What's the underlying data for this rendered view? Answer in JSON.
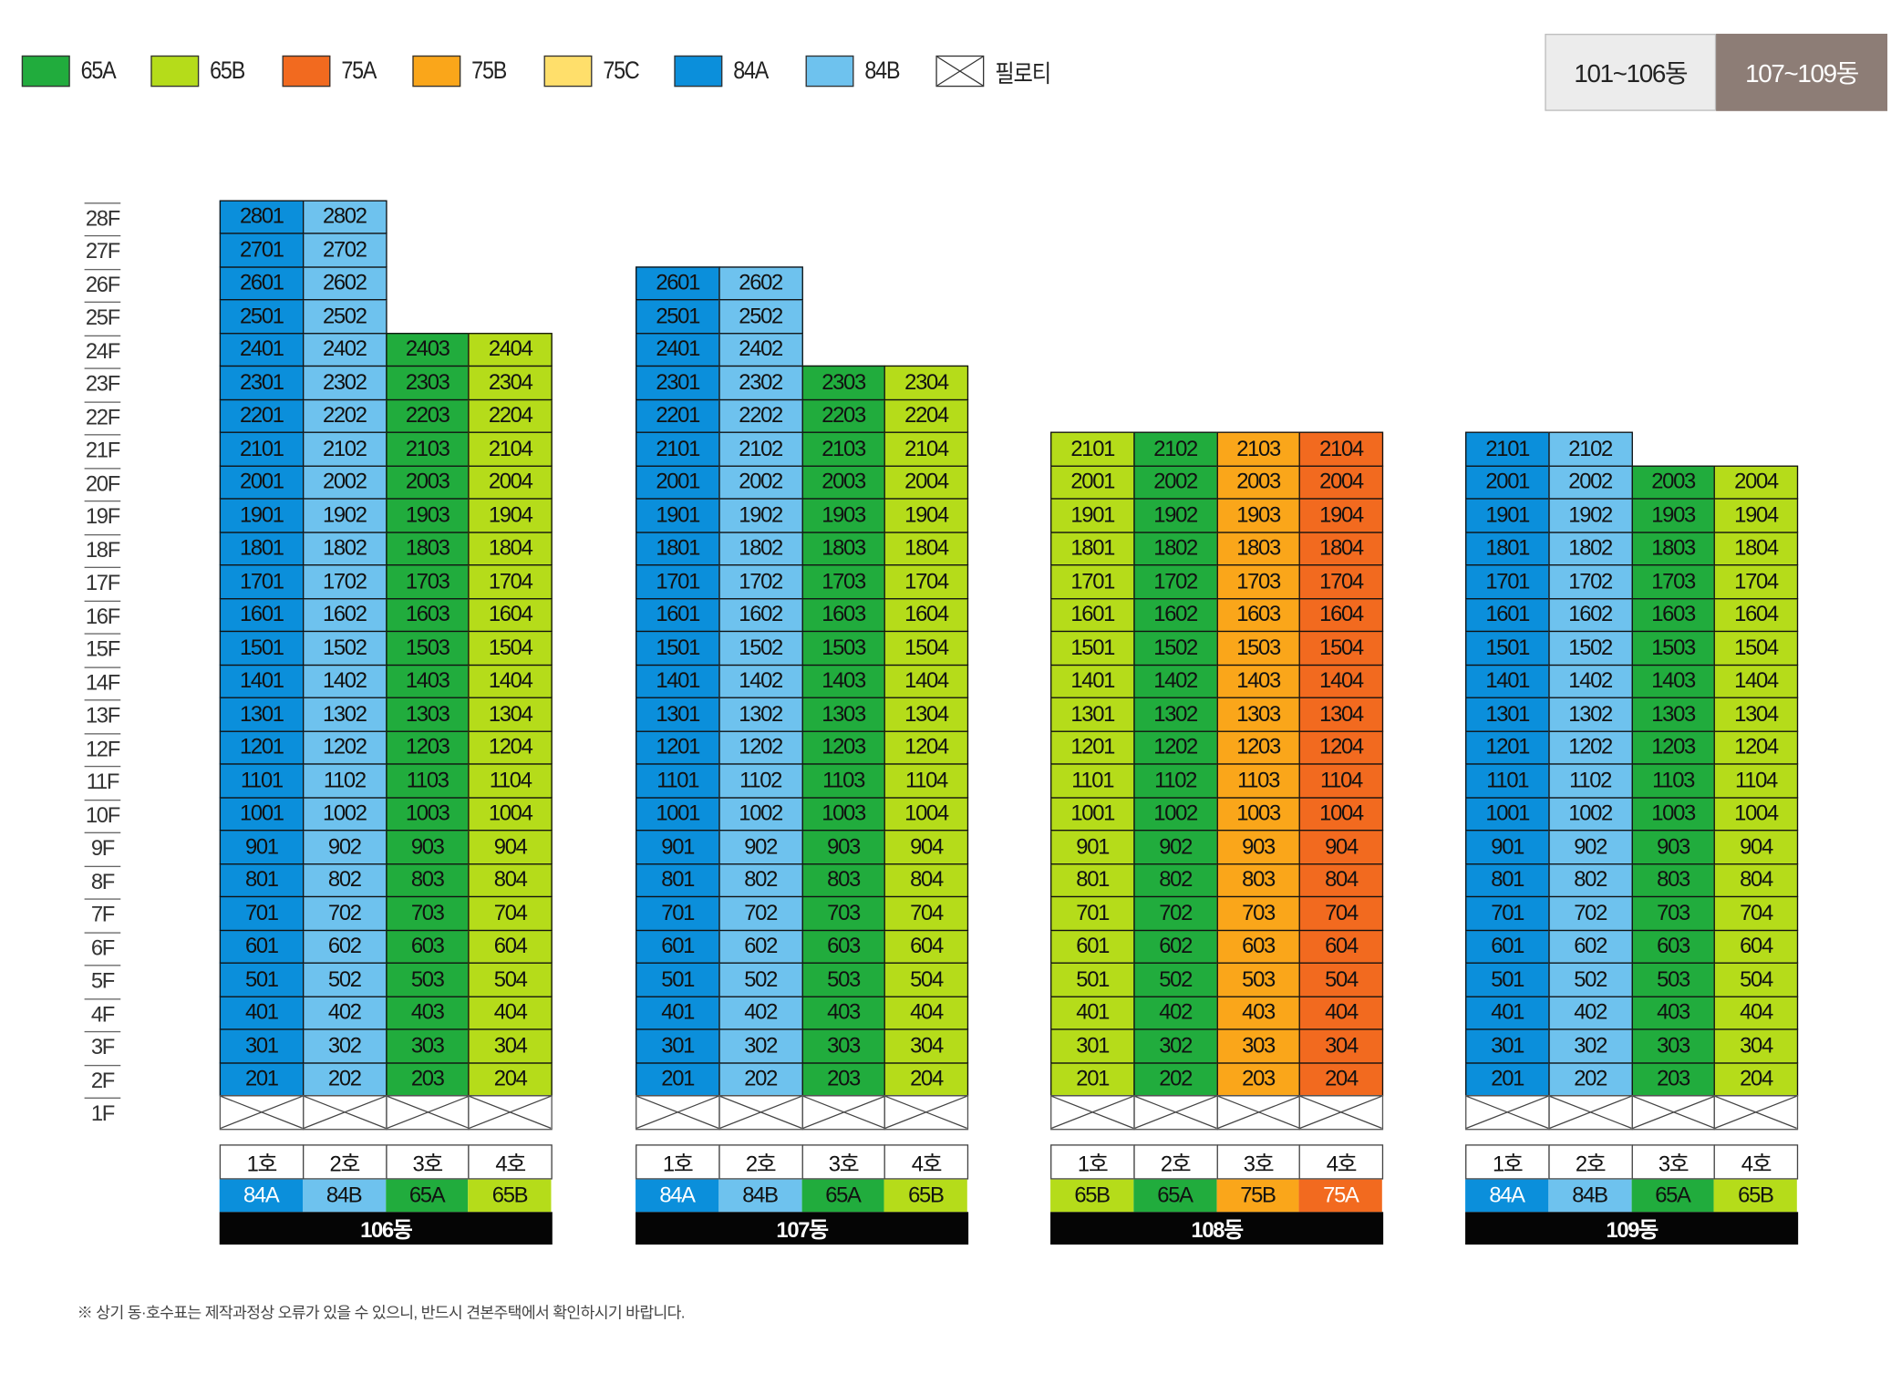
{
  "legend": [
    {
      "label": "65A",
      "color": "#21ac3d"
    },
    {
      "label": "65B",
      "color": "#b5dc1a"
    },
    {
      "label": "75A",
      "color": "#f26a1f"
    },
    {
      "label": "75B",
      "color": "#faa61a"
    },
    {
      "label": "75C",
      "color": "#ffdf6b"
    },
    {
      "label": "84A",
      "color": "#0b8fdb"
    },
    {
      "label": "84B",
      "color": "#6ec2ee"
    },
    {
      "label": "필로티",
      "color": "#ffffff"
    }
  ],
  "tabs": {
    "inactive": "101~106동",
    "active": "107~109동"
  },
  "floors": [
    "28F",
    "27F",
    "26F",
    "25F",
    "24F",
    "23F",
    "22F",
    "21F",
    "20F",
    "19F",
    "18F",
    "17F",
    "16F",
    "15F",
    "14F",
    "13F",
    "12F",
    "11F",
    "10F",
    "9F",
    "8F",
    "7F",
    "6F",
    "5F",
    "4F",
    "3F",
    "2F",
    "1F"
  ],
  "ho_labels": [
    "1호",
    "2호",
    "3호",
    "4호"
  ],
  "buildings": [
    {
      "name": "106동",
      "types": [
        "84A",
        "84B",
        "65A",
        "65B"
      ],
      "tops": [
        28,
        28,
        24,
        24
      ]
    },
    {
      "name": "107동",
      "types": [
        "84A",
        "84B",
        "65A",
        "65B"
      ],
      "tops": [
        26,
        26,
        23,
        23
      ]
    },
    {
      "name": "108동",
      "types": [
        "65B",
        "65A",
        "75B",
        "75A"
      ],
      "tops": [
        21,
        21,
        21,
        21
      ]
    },
    {
      "name": "109동",
      "types": [
        "84A",
        "84B",
        "65A",
        "65B"
      ],
      "tops": [
        21,
        21,
        20,
        20
      ]
    }
  ],
  "colors": {
    "65A": "#21ac3d",
    "65B": "#b5dc1a",
    "75A": "#f26a1f",
    "75B": "#faa61a",
    "75C": "#ffdf6b",
    "84A": "#0b8fdb",
    "84B": "#6ec2ee"
  },
  "note": "※ 상기 동·호수표는 제작과정상 오류가 있을 수 있으니, 반드시 견본주택에서 확인하시기 바랍니다."
}
